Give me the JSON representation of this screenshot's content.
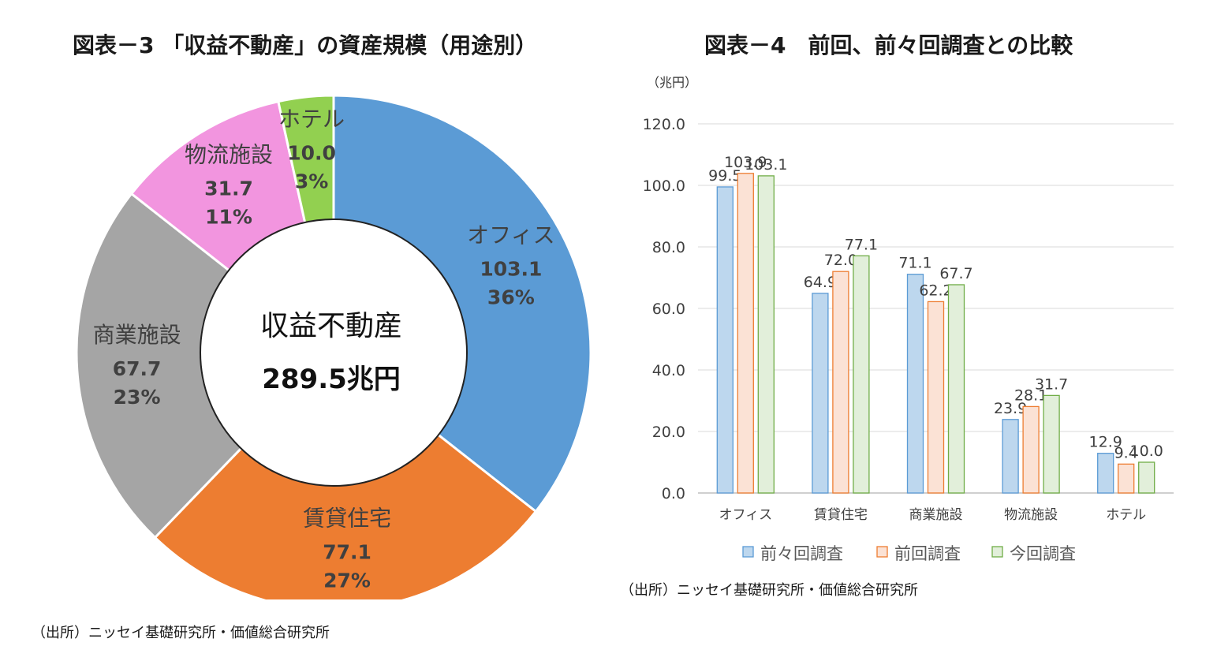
{
  "chart_left": {
    "title": "図表－3 「収益不動産」の資産規模（用途別）",
    "source": "（出所）ニッセイ基礎研究所・価値総合研究所",
    "center_label": "収益不動産",
    "center_total": "289.5兆円",
    "colors": [
      "#5B9BD5",
      "#ED7D31",
      "#A5A5A5",
      "#F295DF",
      "#92D050"
    ]
  },
  "chart_right": {
    "title": "図表－4　前回、前々回調査との比較",
    "source": "（出所）ニッセイ基礎研究所・価値総合研究所",
    "unit_label": "（兆円）",
    "legend_colors": {
      "fill": [
        "#BDD7EE",
        "#FBE2D5",
        "#E2EFDA"
      ],
      "stroke": [
        "#5B9BD5",
        "#ED7D31",
        "#70AD47"
      ]
    }
  },
  "chart_data": [
    {
      "type": "pie",
      "title": "図表－3 「収益不動産」の資産規模（用途別）",
      "categories": [
        "オフィス",
        "賃貸住宅",
        "商業施設",
        "物流施設",
        "ホテル"
      ],
      "values": [
        103.1,
        77.1,
        67.7,
        31.7,
        10.0
      ],
      "value_labels": [
        "103.1",
        "77.1",
        "67.7",
        "31.7",
        "10.0"
      ],
      "percent_labels": [
        "36%",
        "27%",
        "23%",
        "11%",
        "3%"
      ],
      "center_text": [
        "収益不動産",
        "289.5兆円"
      ]
    },
    {
      "type": "bar",
      "title": "図表－4　前回、前々回調査との比較",
      "ylabel": "（兆円）",
      "categories": [
        "オフィス",
        "賃貸住宅",
        "商業施設",
        "物流施設",
        "ホテル"
      ],
      "series": [
        {
          "name": "前々回調査",
          "values": [
            99.5,
            64.9,
            71.1,
            23.9,
            12.9
          ]
        },
        {
          "name": "前回調査",
          "values": [
            103.9,
            72.0,
            62.2,
            28.1,
            9.4
          ]
        },
        {
          "name": "今回調査",
          "values": [
            103.1,
            77.1,
            67.7,
            31.7,
            10.0
          ]
        }
      ],
      "ylim": [
        0,
        120
      ],
      "yticks": [
        "0.0",
        "20.0",
        "40.0",
        "60.0",
        "80.0",
        "100.0",
        "120.0"
      ],
      "grid": true,
      "legend": "bottom"
    }
  ]
}
